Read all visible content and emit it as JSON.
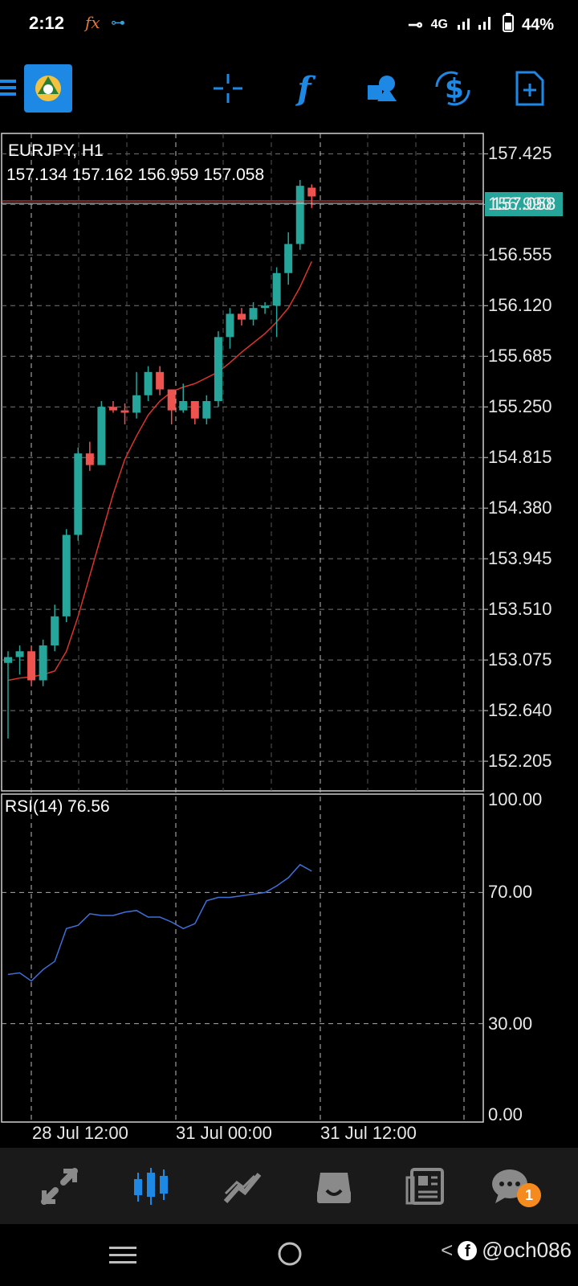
{
  "status_bar": {
    "time": "2:12",
    "network": "4G",
    "battery": "44%"
  },
  "toolbar": {
    "icons": [
      "menu-icon",
      "mt-logo-icon",
      "crosshair-icon",
      "indicators-icon",
      "objects-icon",
      "trade-icon",
      "new-order-icon"
    ],
    "accent_color": "#1e88e5"
  },
  "chart": {
    "symbol": "EURJPY, H1",
    "ohlc": "157.134 157.162 156.959 157.058",
    "current_price": "157.058",
    "price_axis": [
      "157.425",
      "156.990",
      "156.555",
      "156.120",
      "155.685",
      "155.250",
      "154.815",
      "154.380",
      "153.945",
      "153.510",
      "153.075",
      "152.640",
      "152.205"
    ],
    "time_axis": [
      "28 Jul 12:00",
      "31 Jul 00:00",
      "31 Jul 12:00"
    ],
    "bull_color": "#26a69a",
    "bear_color": "#ef5350"
  },
  "rsi": {
    "label": "RSI(14) 76.56",
    "axis": [
      "100.00",
      "70.00",
      "30.00",
      "0.00"
    ],
    "line_color": "#3f6fd8"
  },
  "chart_data": {
    "type": "candlestick",
    "candles": [
      {
        "o": 153.05,
        "h": 153.15,
        "l": 152.4,
        "c": 153.1
      },
      {
        "o": 153.1,
        "h": 153.2,
        "l": 152.95,
        "c": 153.15
      },
      {
        "o": 153.15,
        "h": 153.2,
        "l": 152.85,
        "c": 152.9
      },
      {
        "o": 152.9,
        "h": 153.25,
        "l": 152.85,
        "c": 153.2
      },
      {
        "o": 153.2,
        "h": 153.55,
        "l": 153.15,
        "c": 153.45
      },
      {
        "o": 153.45,
        "h": 154.2,
        "l": 153.4,
        "c": 154.15
      },
      {
        "o": 154.15,
        "h": 154.9,
        "l": 154.1,
        "c": 154.85
      },
      {
        "o": 154.85,
        "h": 154.95,
        "l": 154.7,
        "c": 154.75
      },
      {
        "o": 154.75,
        "h": 155.3,
        "l": 154.75,
        "c": 155.25
      },
      {
        "o": 155.25,
        "h": 155.3,
        "l": 155.2,
        "c": 155.22
      },
      {
        "o": 155.22,
        "h": 155.28,
        "l": 155.1,
        "c": 155.2
      },
      {
        "o": 155.2,
        "h": 155.55,
        "l": 155.15,
        "c": 155.35
      },
      {
        "o": 155.35,
        "h": 155.6,
        "l": 155.3,
        "c": 155.55
      },
      {
        "o": 155.55,
        "h": 155.6,
        "l": 155.35,
        "c": 155.4
      },
      {
        "o": 155.4,
        "h": 155.4,
        "l": 155.1,
        "c": 155.22
      },
      {
        "o": 155.22,
        "h": 155.45,
        "l": 155.2,
        "c": 155.3
      },
      {
        "o": 155.3,
        "h": 155.3,
        "l": 155.1,
        "c": 155.15
      },
      {
        "o": 155.15,
        "h": 155.35,
        "l": 155.1,
        "c": 155.3
      },
      {
        "o": 155.3,
        "h": 155.9,
        "l": 155.25,
        "c": 155.85
      },
      {
        "o": 155.85,
        "h": 156.1,
        "l": 155.75,
        "c": 156.05
      },
      {
        "o": 156.05,
        "h": 156.1,
        "l": 155.95,
        "c": 156.0
      },
      {
        "o": 156.0,
        "h": 156.15,
        "l": 155.95,
        "c": 156.1
      },
      {
        "o": 156.1,
        "h": 156.15,
        "l": 156.05,
        "c": 156.12
      },
      {
        "o": 156.12,
        "h": 156.45,
        "l": 155.85,
        "c": 156.4
      },
      {
        "o": 156.4,
        "h": 156.75,
        "l": 156.3,
        "c": 156.65
      },
      {
        "o": 156.65,
        "h": 157.2,
        "l": 156.6,
        "c": 157.15
      },
      {
        "o": 157.134,
        "h": 157.162,
        "l": 156.959,
        "c": 157.058
      }
    ],
    "ma": [
      152.9,
      152.92,
      152.93,
      152.95,
      152.98,
      153.15,
      153.45,
      153.8,
      154.15,
      154.5,
      154.8,
      155.0,
      155.18,
      155.3,
      155.38,
      155.42,
      155.45,
      155.5,
      155.55,
      155.63,
      155.72,
      155.8,
      155.88,
      155.98,
      156.1,
      156.28,
      156.5
    ],
    "rsi_values": [
      45,
      45.5,
      43,
      46.5,
      49,
      59,
      60,
      63.5,
      63,
      63,
      64,
      64.5,
      62.5,
      62.5,
      61,
      59,
      60.5,
      67.5,
      68.5,
      68.5,
      69,
      69.5,
      70,
      72,
      74.5,
      78.5,
      76.5
    ],
    "ylim": [
      151.95,
      157.6
    ],
    "rsi_ylim": [
      0,
      100
    ]
  },
  "bottom_nav": {
    "items": [
      "quotes-icon",
      "chart-icon",
      "trade-icon",
      "history-icon",
      "news-icon",
      "messages-icon"
    ],
    "active": 1,
    "message_count": "1"
  },
  "watermark": {
    "handle": "@och086"
  }
}
